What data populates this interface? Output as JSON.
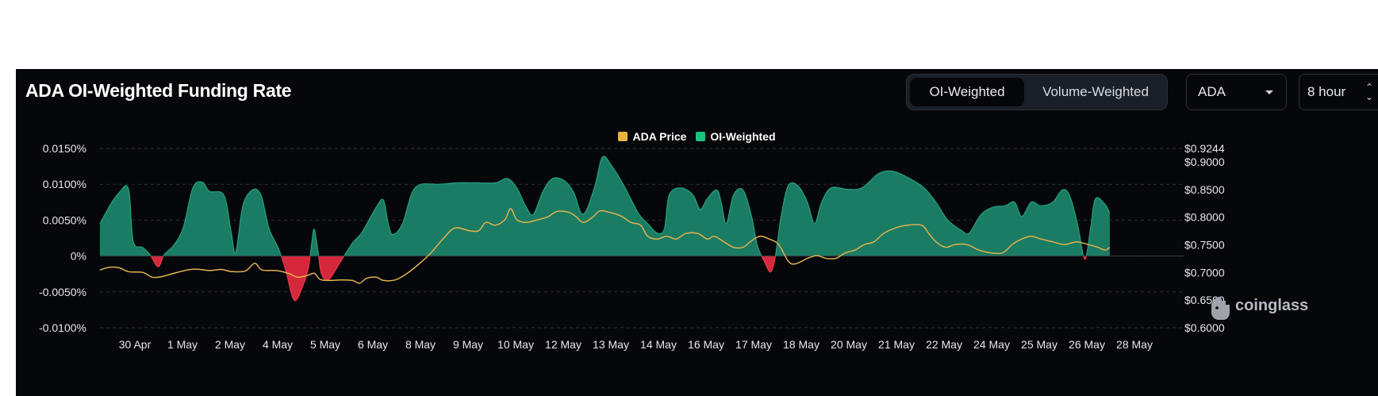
{
  "header": {
    "title": "ADA OI-Weighted Funding Rate",
    "toggle": {
      "oi_label": "OI-Weighted",
      "volume_label": "Volume-Weighted"
    },
    "coin_select": "ADA",
    "interval_select": "8 hour"
  },
  "legend": {
    "price_label": "ADA Price",
    "oi_label": "OI-Weighted"
  },
  "watermark": {
    "text": "coinglass"
  },
  "chart_data": {
    "type": "area",
    "title": "ADA OI-Weighted Funding Rate",
    "colors": {
      "positive": "#1e8a6e",
      "negative": "#d6283c",
      "price": "#e0b14c"
    },
    "x_tick_labels": [
      "30 Apr",
      "1 May",
      "2 May",
      "4 May",
      "5 May",
      "6 May",
      "8 May",
      "9 May",
      "10 May",
      "12 May",
      "13 May",
      "14 May",
      "16 May",
      "17 May",
      "18 May",
      "20 May",
      "21 May",
      "22 May",
      "24 May",
      "25 May",
      "26 May",
      "28 May"
    ],
    "y_left": {
      "range": [
        -0.01,
        0.015
      ],
      "ticks": [
        0.015,
        0.01,
        0.005,
        0,
        -0.005,
        -0.01
      ],
      "tick_labels": [
        "0.0150%",
        "0.0100%",
        "0.0050%",
        "0%",
        "-0.0050%",
        "-0.0100%"
      ]
    },
    "y_right": {
      "range": [
        0.6,
        0.9244
      ],
      "ticks": [
        0.9244,
        0.9,
        0.85,
        0.8,
        0.75,
        0.7,
        0.65,
        0.6
      ],
      "tick_labels": [
        "$0.9244",
        "$0.9000",
        "$0.8500",
        "$0.8000",
        "$0.7500",
        "$0.7000",
        "$0.6500",
        "$0.6000"
      ]
    },
    "x_range": [
      0,
      22.5
    ],
    "series": [
      {
        "name": "OI-Weighted",
        "unit": "%",
        "points": [
          [
            0,
            0.0045
          ],
          [
            0.25,
            0.0075
          ],
          [
            0.45,
            0.0092
          ],
          [
            0.55,
            0.0098
          ],
          [
            0.62,
            0.0085
          ],
          [
            0.7,
            0.002
          ],
          [
            0.9,
            0.0012
          ],
          [
            1.05,
            0.0002
          ],
          [
            1.22,
            -0.0015
          ],
          [
            1.35,
            0.0002
          ],
          [
            1.55,
            0.0015
          ],
          [
            1.75,
            0.004
          ],
          [
            1.95,
            0.0095
          ],
          [
            2.15,
            0.0103
          ],
          [
            2.3,
            0.009
          ],
          [
            2.6,
            0.0085
          ],
          [
            2.75,
            0.0035
          ],
          [
            2.85,
            0.0005
          ],
          [
            3,
            0.007
          ],
          [
            3.2,
            0.0092
          ],
          [
            3.38,
            0.0085
          ],
          [
            3.55,
            0.0038
          ],
          [
            3.75,
            0.001
          ],
          [
            3.9,
            -0.002
          ],
          [
            4.08,
            -0.0062
          ],
          [
            4.28,
            -0.0038
          ],
          [
            4.38,
            -0.0015
          ],
          [
            4.45,
            0.002
          ],
          [
            4.5,
            0.0037
          ],
          [
            4.58,
            0.0005
          ],
          [
            4.65,
            -0.0025
          ],
          [
            4.8,
            -0.0033
          ],
          [
            5.05,
            -0.0008
          ],
          [
            5.3,
            0.0018
          ],
          [
            5.5,
            0.0033
          ],
          [
            5.8,
            0.0068
          ],
          [
            5.95,
            0.0078
          ],
          [
            6.05,
            0.0045
          ],
          [
            6.15,
            0.003
          ],
          [
            6.35,
            0.0045
          ],
          [
            6.55,
            0.0088
          ],
          [
            6.75,
            0.01
          ],
          [
            7.1,
            0.01
          ],
          [
            7.5,
            0.0102
          ],
          [
            7.9,
            0.0102
          ],
          [
            8.3,
            0.0102
          ],
          [
            8.55,
            0.0108
          ],
          [
            8.75,
            0.0095
          ],
          [
            8.95,
            0.0068
          ],
          [
            9.1,
            0.0058
          ],
          [
            9.3,
            0.009
          ],
          [
            9.5,
            0.0108
          ],
          [
            9.75,
            0.0105
          ],
          [
            9.95,
            0.0088
          ],
          [
            10.1,
            0.006
          ],
          [
            10.22,
            0.0065
          ],
          [
            10.4,
            0.01
          ],
          [
            10.55,
            0.0138
          ],
          [
            10.75,
            0.0125
          ],
          [
            11,
            0.0098
          ],
          [
            11.3,
            0.006
          ],
          [
            11.5,
            0.0045
          ],
          [
            11.7,
            0.0032
          ],
          [
            11.85,
            0.0038
          ],
          [
            11.95,
            0.0085
          ],
          [
            12.2,
            0.0095
          ],
          [
            12.45,
            0.0085
          ],
          [
            12.6,
            0.0065
          ],
          [
            12.75,
            0.008
          ],
          [
            12.95,
            0.0092
          ],
          [
            13.05,
            0.0072
          ],
          [
            13.15,
            0.0045
          ],
          [
            13.3,
            0.0085
          ],
          [
            13.5,
            0.0092
          ],
          [
            13.68,
            0.0055
          ],
          [
            13.8,
            0.0015
          ],
          [
            13.95,
            -0.0008
          ],
          [
            14.08,
            -0.0022
          ],
          [
            14.18,
            0
          ],
          [
            14.3,
            0.0055
          ],
          [
            14.45,
            0.0098
          ],
          [
            14.65,
            0.0098
          ],
          [
            14.85,
            0.0075
          ],
          [
            15.0,
            0.0045
          ],
          [
            15.15,
            0.0075
          ],
          [
            15.35,
            0.0095
          ],
          [
            15.7,
            0.0093
          ],
          [
            16.0,
            0.0095
          ],
          [
            16.35,
            0.0115
          ],
          [
            16.65,
            0.0118
          ],
          [
            17.0,
            0.0108
          ],
          [
            17.3,
            0.0095
          ],
          [
            17.55,
            0.0075
          ],
          [
            17.8,
            0.005
          ],
          [
            18.1,
            0.0035
          ],
          [
            18.25,
            0.0032
          ],
          [
            18.5,
            0.0058
          ],
          [
            18.75,
            0.0068
          ],
          [
            19.0,
            0.007
          ],
          [
            19.2,
            0.0075
          ],
          [
            19.35,
            0.0055
          ],
          [
            19.55,
            0.0075
          ],
          [
            19.75,
            0.007
          ],
          [
            20.0,
            0.0075
          ],
          [
            20.2,
            0.0092
          ],
          [
            20.35,
            0.0085
          ],
          [
            20.52,
            0.0045
          ],
          [
            20.63,
            0.0005
          ],
          [
            20.7,
            -0.0002
          ],
          [
            20.8,
            0.004
          ],
          [
            20.9,
            0.008
          ],
          [
            21.1,
            0.0072
          ],
          [
            21.2,
            0.006
          ]
        ]
      },
      {
        "name": "ADA Price",
        "unit": "$",
        "points": [
          [
            0,
            0.7045
          ],
          [
            0.2,
            0.7095
          ],
          [
            0.4,
            0.7085
          ],
          [
            0.6,
            0.7015
          ],
          [
            0.9,
            0.7
          ],
          [
            1.1,
            0.6915
          ],
          [
            1.3,
            0.6925
          ],
          [
            1.55,
            0.6985
          ],
          [
            1.85,
            0.7048
          ],
          [
            2.05,
            0.706
          ],
          [
            2.3,
            0.7035
          ],
          [
            2.55,
            0.7055
          ],
          [
            2.75,
            0.7018
          ],
          [
            3.05,
            0.7025
          ],
          [
            3.25,
            0.7165
          ],
          [
            3.4,
            0.7045
          ],
          [
            3.7,
            0.7035
          ],
          [
            3.95,
            0.6985
          ],
          [
            4.15,
            0.6915
          ],
          [
            4.35,
            0.6945
          ],
          [
            4.5,
            0.6985
          ],
          [
            4.62,
            0.6875
          ],
          [
            4.8,
            0.6855
          ],
          [
            5.05,
            0.6865
          ],
          [
            5.3,
            0.6855
          ],
          [
            5.45,
            0.6805
          ],
          [
            5.6,
            0.6895
          ],
          [
            5.8,
            0.6915
          ],
          [
            5.95,
            0.6855
          ],
          [
            6.2,
            0.6865
          ],
          [
            6.45,
            0.6985
          ],
          [
            6.7,
            0.7155
          ],
          [
            6.95,
            0.7355
          ],
          [
            7.2,
            0.7605
          ],
          [
            7.45,
            0.7805
          ],
          [
            7.75,
            0.7755
          ],
          [
            7.95,
            0.7755
          ],
          [
            8.1,
            0.7905
          ],
          [
            8.3,
            0.7855
          ],
          [
            8.5,
            0.7955
          ],
          [
            8.62,
            0.8155
          ],
          [
            8.75,
            0.7955
          ],
          [
            8.95,
            0.7905
          ],
          [
            9.2,
            0.7955
          ],
          [
            9.4,
            0.8005
          ],
          [
            9.6,
            0.8105
          ],
          [
            9.85,
            0.8085
          ],
          [
            10.0,
            0.8005
          ],
          [
            10.15,
            0.7905
          ],
          [
            10.35,
            0.8005
          ],
          [
            10.5,
            0.8115
          ],
          [
            10.75,
            0.8075
          ],
          [
            10.95,
            0.8015
          ],
          [
            11.15,
            0.7905
          ],
          [
            11.35,
            0.7855
          ],
          [
            11.5,
            0.7655
          ],
          [
            11.7,
            0.7605
          ],
          [
            11.9,
            0.7655
          ],
          [
            12.1,
            0.7605
          ],
          [
            12.3,
            0.7705
          ],
          [
            12.55,
            0.7705
          ],
          [
            12.75,
            0.7605
          ],
          [
            12.9,
            0.7655
          ],
          [
            13.1,
            0.7555
          ],
          [
            13.3,
            0.7455
          ],
          [
            13.5,
            0.7455
          ],
          [
            13.65,
            0.7555
          ],
          [
            13.85,
            0.7655
          ],
          [
            14.05,
            0.7605
          ],
          [
            14.25,
            0.7505
          ],
          [
            14.45,
            0.7205
          ],
          [
            14.6,
            0.7155
          ],
          [
            14.85,
            0.7255
          ],
          [
            15.05,
            0.7305
          ],
          [
            15.25,
            0.7255
          ],
          [
            15.45,
            0.7255
          ],
          [
            15.65,
            0.7355
          ],
          [
            15.85,
            0.7405
          ],
          [
            16.05,
            0.7505
          ],
          [
            16.25,
            0.7555
          ],
          [
            16.45,
            0.7705
          ],
          [
            16.7,
            0.7805
          ],
          [
            16.95,
            0.7855
          ],
          [
            17.25,
            0.7855
          ],
          [
            17.4,
            0.7705
          ],
          [
            17.55,
            0.7555
          ],
          [
            17.75,
            0.7455
          ],
          [
            17.95,
            0.7505
          ],
          [
            18.2,
            0.7505
          ],
          [
            18.45,
            0.7405
          ],
          [
            18.7,
            0.7355
          ],
          [
            18.95,
            0.7355
          ],
          [
            19.15,
            0.7505
          ],
          [
            19.35,
            0.7605
          ],
          [
            19.55,
            0.7655
          ],
          [
            19.75,
            0.7605
          ],
          [
            20.0,
            0.7555
          ],
          [
            20.25,
            0.7505
          ],
          [
            20.5,
            0.7555
          ],
          [
            20.75,
            0.7505
          ],
          [
            20.95,
            0.7455
          ],
          [
            21.1,
            0.7405
          ],
          [
            21.2,
            0.7455
          ]
        ]
      }
    ]
  }
}
